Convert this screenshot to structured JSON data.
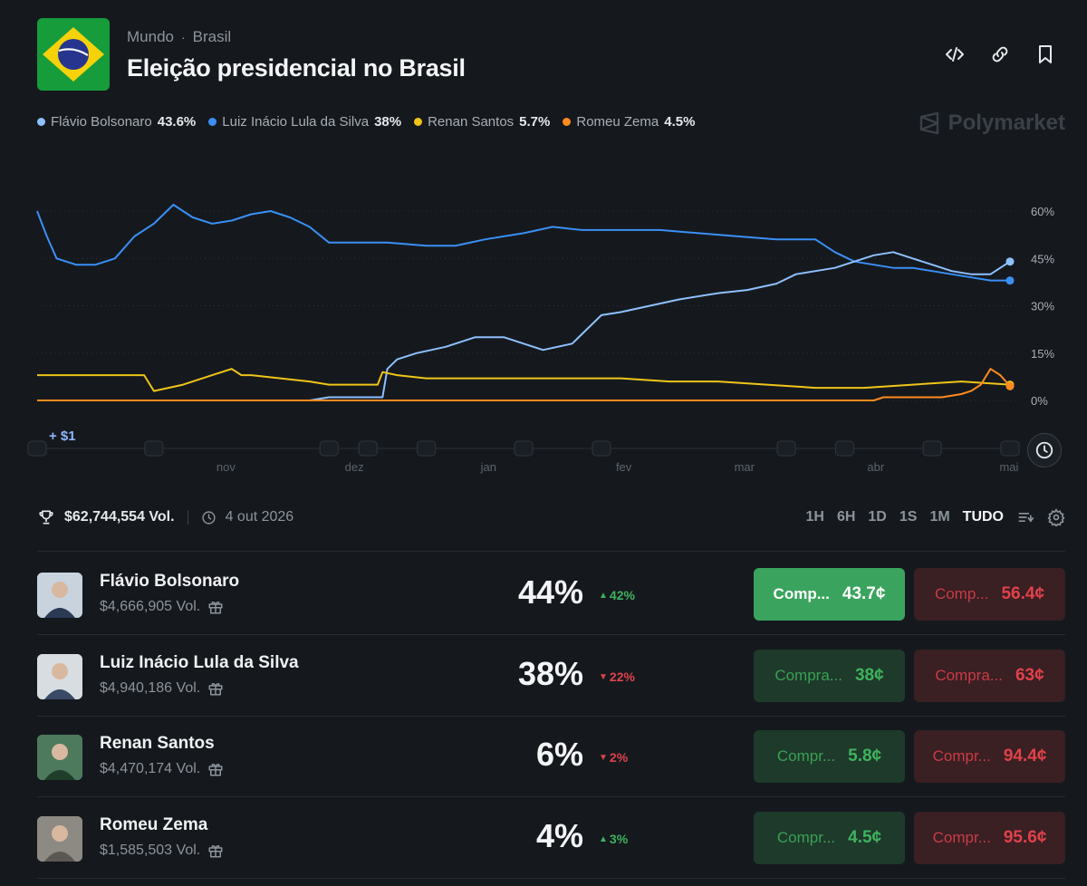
{
  "header": {
    "breadcrumb": [
      "Mundo",
      "Brasil"
    ],
    "title": "Eleição presidencial no Brasil",
    "icons": [
      "code-icon",
      "link-icon",
      "bookmark-icon"
    ]
  },
  "brand": "Polymarket",
  "legend": [
    {
      "name": "Flávio Bolsonaro",
      "value": "43.6%",
      "color": "#8fc0ff"
    },
    {
      "name": "Luiz Inácio Lula da Silva",
      "value": "38%",
      "color": "#3a8ff5"
    },
    {
      "name": "Renan Santos",
      "value": "5.7%",
      "color": "#f0c419"
    },
    {
      "name": "Romeu Zema",
      "value": "4.5%",
      "color": "#ff8a1f"
    }
  ],
  "chart_data": {
    "type": "line",
    "y_ticks": [
      "60%",
      "45%",
      "30%",
      "15%",
      "0%"
    ],
    "x_ticks": [
      "nov",
      "dez",
      "jan",
      "fev",
      "mar",
      "abr",
      "mai"
    ],
    "ylim": [
      0,
      60
    ],
    "x_range": [
      "out",
      "mai"
    ],
    "grid": true,
    "series": [
      {
        "name": "Luiz Inácio Lula da Silva",
        "color": "#3a8ff5",
        "x": [
          0.0,
          0.01,
          0.02,
          0.04,
          0.06,
          0.08,
          0.1,
          0.12,
          0.14,
          0.16,
          0.18,
          0.2,
          0.22,
          0.24,
          0.26,
          0.28,
          0.3,
          0.33,
          0.36,
          0.4,
          0.43,
          0.46,
          0.5,
          0.53,
          0.56,
          0.6,
          0.64,
          0.68,
          0.72,
          0.76,
          0.8,
          0.82,
          0.84,
          0.86,
          0.88,
          0.9,
          0.92,
          0.94,
          0.96,
          0.98,
          1.0
        ],
        "y": [
          60,
          52,
          45,
          43,
          43,
          45,
          52,
          56,
          62,
          58,
          56,
          57,
          59,
          60,
          58,
          55,
          50,
          50,
          50,
          49,
          49,
          51,
          53,
          55,
          54,
          54,
          54,
          53,
          52,
          51,
          51,
          47,
          44,
          43,
          42,
          42,
          41,
          40,
          39,
          38,
          38
        ]
      },
      {
        "name": "Flávio Bolsonaro",
        "color": "#8fc0ff",
        "x": [
          0.28,
          0.3,
          0.33,
          0.355,
          0.36,
          0.37,
          0.39,
          0.42,
          0.45,
          0.48,
          0.5,
          0.52,
          0.55,
          0.58,
          0.6,
          0.63,
          0.66,
          0.7,
          0.73,
          0.76,
          0.78,
          0.8,
          0.82,
          0.84,
          0.86,
          0.88,
          0.9,
          0.92,
          0.94,
          0.96,
          0.98,
          1.0
        ],
        "y": [
          0,
          1,
          1,
          1,
          10,
          13,
          15,
          17,
          20,
          20,
          18,
          16,
          18,
          27,
          28,
          30,
          32,
          34,
          35,
          37,
          40,
          41,
          42,
          44,
          46,
          47,
          45,
          43,
          41,
          40,
          40,
          44
        ]
      },
      {
        "name": "Renan Santos",
        "color": "#f0c419",
        "x": [
          0.0,
          0.11,
          0.12,
          0.15,
          0.18,
          0.2,
          0.21,
          0.22,
          0.25,
          0.28,
          0.3,
          0.35,
          0.355,
          0.37,
          0.4,
          0.45,
          0.5,
          0.55,
          0.6,
          0.65,
          0.7,
          0.75,
          0.8,
          0.85,
          0.9,
          0.95,
          1.0
        ],
        "y": [
          8,
          8,
          3,
          5,
          8,
          10,
          8,
          8,
          7,
          6,
          5,
          5,
          9,
          8,
          7,
          7,
          7,
          7,
          7,
          6,
          6,
          5,
          4,
          4,
          5,
          6,
          5
        ]
      },
      {
        "name": "Romeu Zema",
        "color": "#ff8a1f",
        "x": [
          0.0,
          0.86,
          0.87,
          0.9,
          0.93,
          0.95,
          0.96,
          0.97,
          0.98,
          0.99,
          1.0
        ],
        "y": [
          0,
          0,
          1,
          1,
          1,
          2,
          3,
          5,
          10,
          8,
          4.5
        ]
      }
    ],
    "buy_more_label": "+ $1"
  },
  "stats": {
    "volume": "$62,744,554 Vol.",
    "date": "4 out 2026",
    "ranges": [
      "1H",
      "6H",
      "1D",
      "1S",
      "1M",
      "TUDO"
    ],
    "active_range": "TUDO"
  },
  "outcomes": [
    {
      "name": "Flávio Bolsonaro",
      "volume": "$4,666,905 Vol.",
      "pct": "44%",
      "change": "42%",
      "dir": "up",
      "yes_label": "Comp...",
      "yes_price": "43.7¢",
      "no_label": "Comp...",
      "no_price": "56.4¢",
      "highlight": true,
      "avatar_bg": "#c9d3de",
      "avatar_fg": "#2b3a55"
    },
    {
      "name": "Luiz Inácio Lula da Silva",
      "volume": "$4,940,186 Vol.",
      "pct": "38%",
      "change": "22%",
      "dir": "dn",
      "yes_label": "Compra...",
      "yes_price": "38¢",
      "no_label": "Compra...",
      "no_price": "63¢",
      "highlight": false,
      "avatar_bg": "#d8dde2",
      "avatar_fg": "#3a4a66"
    },
    {
      "name": "Renan Santos",
      "volume": "$4,470,174 Vol.",
      "pct": "6%",
      "change": "2%",
      "dir": "dn",
      "yes_label": "Compr...",
      "yes_price": "5.8¢",
      "no_label": "Compr...",
      "no_price": "94.4¢",
      "highlight": false,
      "avatar_bg": "#4d7a5c",
      "avatar_fg": "#1f3d2a"
    },
    {
      "name": "Romeu Zema",
      "volume": "$1,585,503 Vol.",
      "pct": "4%",
      "change": "3%",
      "dir": "up",
      "yes_label": "Compr...",
      "yes_price": "4.5¢",
      "no_label": "Compr...",
      "no_price": "95.6¢",
      "highlight": false,
      "avatar_bg": "#8d8a83",
      "avatar_fg": "#5b5752"
    }
  ]
}
